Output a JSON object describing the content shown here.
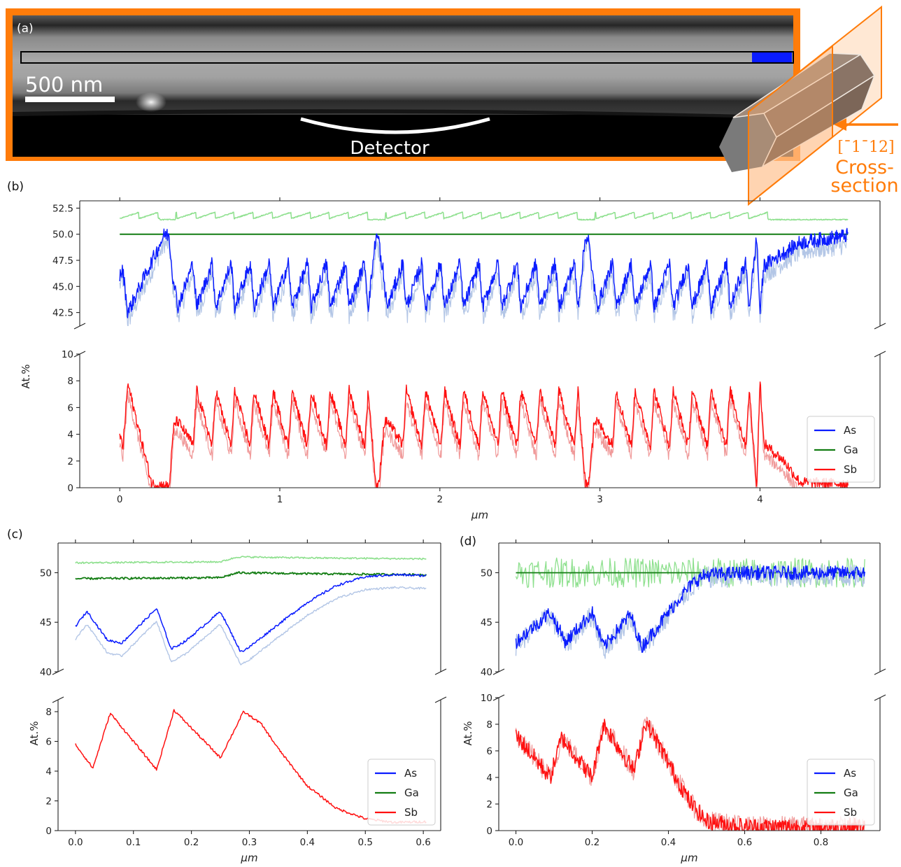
{
  "panel_a": {
    "label": "(a)",
    "scale_bar": "500 nm",
    "detector_label": "Detector",
    "inset_direction": "[¯1¯12]",
    "inset_label_line1": "Cross-",
    "inset_label_line2": "section",
    "colors": {
      "frame": "#ff7c0a",
      "scan_box": "#0a1cff",
      "inset_prism": "#8a7466"
    }
  },
  "chart_data": [
    {
      "panel": "(b)",
      "type": "line",
      "ylabel": "At.%",
      "xlabel": "μm",
      "legend": [
        "As",
        "Ga",
        "Sb"
      ],
      "legend_position": "lower-right",
      "broken_y_axis": true,
      "x_ticks": [
        "0",
        "1",
        "2",
        "3",
        "4"
      ],
      "y_ticks_upper": [
        "42.5",
        "45.0",
        "47.5",
        "50.0",
        "52.5"
      ],
      "y_ticks_lower": [
        "0",
        "2",
        "4",
        "6",
        "8",
        "10"
      ],
      "xlim": [
        -0.25,
        4.75
      ],
      "ylim_upper": [
        41.2,
        53.2
      ],
      "ylim_lower": [
        0,
        10
      ],
      "x_range": [
        0,
        4.55
      ],
      "segments": [
        {
          "start": 0.0,
          "end": 0.31,
          "type": "grad_down"
        },
        {
          "start": 0.31,
          "end": 1.62,
          "type": "osc",
          "n_cycles": 11
        },
        {
          "start": 1.62,
          "end": 2.93,
          "type": "osc",
          "n_cycles": 11
        },
        {
          "start": 2.93,
          "end": 4.0,
          "type": "osc",
          "n_cycles": 9
        },
        {
          "start": 4.0,
          "end": 4.55,
          "type": "tail"
        }
      ],
      "series": [
        {
          "name": "As",
          "color": "#0a1cff",
          "light_color": "#b3c6e6",
          "mean": 45.0,
          "range_in_wells": [
            42.5,
            47.5
          ],
          "value_between_wells": 50.0
        },
        {
          "name": "Ga",
          "color": "#137d13",
          "light_color": "#8ee08e",
          "value": 50.0,
          "light_value": 51.8
        },
        {
          "name": "Sb",
          "color": "#ff1010",
          "light_color": "#f09a9a",
          "range_in_wells": [
            2.5,
            8.0
          ],
          "value_between_wells": 0.2
        }
      ]
    },
    {
      "panel": "(c)",
      "type": "line",
      "ylabel": "At.%",
      "xlabel": "μm",
      "legend": [
        "As",
        "Ga",
        "Sb"
      ],
      "legend_position": "lower-right",
      "broken_y_axis": true,
      "x_ticks": [
        "0.0",
        "0.1",
        "0.2",
        "0.3",
        "0.4",
        "0.5",
        "0.6"
      ],
      "y_ticks_upper": [
        "40",
        "45",
        "50"
      ],
      "y_ticks_lower": [
        "0",
        "2",
        "4",
        "6",
        "8"
      ],
      "xlim": [
        -0.03,
        0.63
      ],
      "ylim_upper": [
        40,
        53
      ],
      "ylim_lower": [
        0,
        8.8
      ],
      "x_range": [
        0,
        0.605
      ],
      "series": [
        {
          "name": "As",
          "color": "#0a1cff",
          "light_color": "#b3c6e6",
          "points": [
            [
              0,
              44.6
            ],
            [
              0.02,
              46.1
            ],
            [
              0.055,
              43.2
            ],
            [
              0.08,
              42.9
            ],
            [
              0.14,
              46.4
            ],
            [
              0.165,
              42.3
            ],
            [
              0.19,
              43.1
            ],
            [
              0.25,
              46.1
            ],
            [
              0.285,
              42.0
            ],
            [
              0.3,
              42.5
            ],
            [
              0.35,
              44.8
            ],
            [
              0.4,
              47.0
            ],
            [
              0.45,
              48.7
            ],
            [
              0.5,
              49.6
            ],
            [
              0.55,
              49.8
            ],
            [
              0.605,
              49.7
            ]
          ]
        },
        {
          "name": "Ga",
          "color": "#137d13",
          "light_color": "#8ee08e",
          "values_approx": [
            49.4,
            50.0
          ]
        },
        {
          "name": "Sb",
          "color": "#ff1010",
          "points": [
            [
              0,
              5.8
            ],
            [
              0.03,
              4.2
            ],
            [
              0.06,
              7.9
            ],
            [
              0.14,
              4.1
            ],
            [
              0.17,
              8.1
            ],
            [
              0.25,
              4.9
            ],
            [
              0.29,
              8.0
            ],
            [
              0.32,
              7.2
            ],
            [
              0.35,
              5.5
            ],
            [
              0.4,
              3.0
            ],
            [
              0.45,
              1.5
            ],
            [
              0.5,
              0.8
            ],
            [
              0.55,
              0.55
            ],
            [
              0.605,
              0.6
            ]
          ]
        }
      ]
    },
    {
      "panel": "(d)",
      "type": "line",
      "ylabel": "At.%",
      "xlabel": "μm",
      "legend": [
        "As",
        "Ga",
        "Sb"
      ],
      "legend_position": "lower-right",
      "broken_y_axis": true,
      "x_ticks": [
        "0.0",
        "0.2",
        "0.4",
        "0.6",
        "0.8"
      ],
      "y_ticks_upper": [
        "40",
        "45",
        "50"
      ],
      "y_ticks_lower": [
        "0",
        "2",
        "4",
        "6",
        "8",
        "10"
      ],
      "xlim": [
        -0.045,
        0.955
      ],
      "ylim_upper": [
        40,
        53
      ],
      "ylim_lower": [
        0,
        10
      ],
      "x_range": [
        0,
        0.915
      ],
      "series": [
        {
          "name": "As",
          "color": "#0a1cff",
          "light_color": "#b3c6e6",
          "points": [
            [
              0,
              43.0
            ],
            [
              0.09,
              46.0
            ],
            [
              0.13,
              43.0
            ],
            [
              0.2,
              46.0
            ],
            [
              0.23,
              42.5
            ],
            [
              0.3,
              45.8
            ],
            [
              0.33,
              42.5
            ],
            [
              0.38,
              45.0
            ],
            [
              0.43,
              47.5
            ],
            [
              0.47,
              49.2
            ],
            [
              0.5,
              49.8
            ],
            [
              0.6,
              50.0
            ],
            [
              0.915,
              50.0
            ]
          ]
        },
        {
          "name": "Ga",
          "color": "#137d13",
          "light_color": "#8ee08e",
          "value": 50.0
        },
        {
          "name": "Sb",
          "color": "#ff1010",
          "light_color": "#f09a9a",
          "points": [
            [
              0,
              7.2
            ],
            [
              0.09,
              4.0
            ],
            [
              0.12,
              7.0
            ],
            [
              0.2,
              4.0
            ],
            [
              0.23,
              8.0
            ],
            [
              0.31,
              4.5
            ],
            [
              0.34,
              8.2
            ],
            [
              0.38,
              6.2
            ],
            [
              0.42,
              4.0
            ],
            [
              0.46,
              2.0
            ],
            [
              0.5,
              0.7
            ],
            [
              0.6,
              0.3
            ],
            [
              0.915,
              0.3
            ]
          ]
        }
      ]
    }
  ]
}
